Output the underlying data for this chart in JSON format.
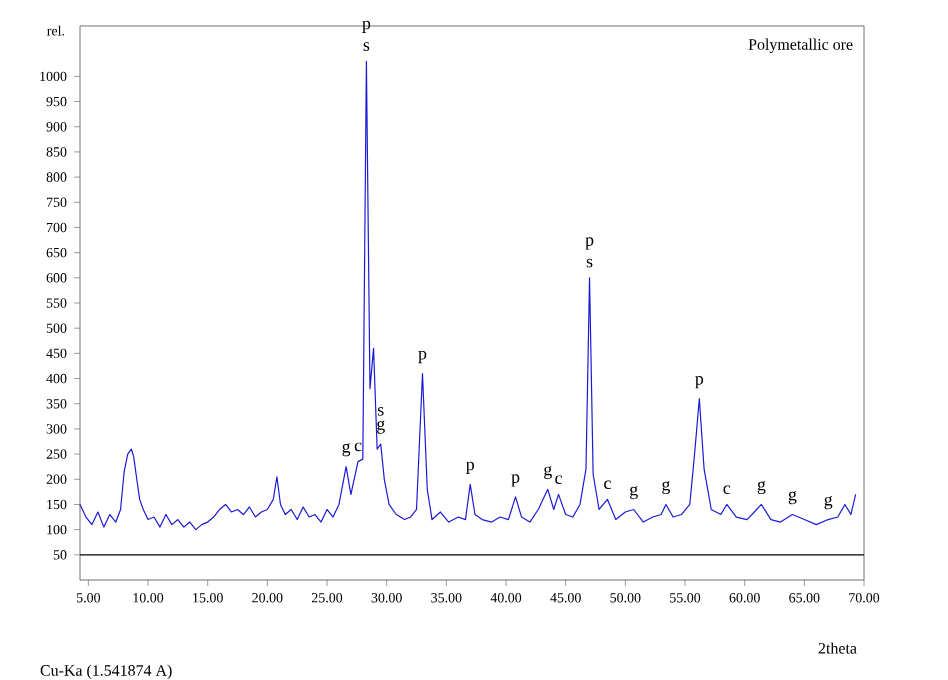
{
  "chart_data": {
    "type": "line",
    "title": "Polymetallic ore",
    "xlabel": "2theta",
    "ylabel": "rel.",
    "annotations": [
      "Cu-Ka (1.541874 A)",
      {
        "text": "p",
        "x": 28.3,
        "y": 1030
      },
      {
        "text": "s",
        "x": 28.3,
        "y": 1030
      },
      {
        "text": "g",
        "x": 26.6,
        "y": 225
      },
      {
        "text": "c",
        "x": 27.6,
        "y": 235
      },
      {
        "text": "s",
        "x": 29.5,
        "y": 270
      },
      {
        "text": "g",
        "x": 29.5,
        "y": 270
      },
      {
        "text": "p",
        "x": 33.0,
        "y": 410
      },
      {
        "text": "p",
        "x": 37.0,
        "y": 190
      },
      {
        "text": "p",
        "x": 40.8,
        "y": 165
      },
      {
        "text": "g",
        "x": 43.5,
        "y": 180
      },
      {
        "text": "c",
        "x": 44.4,
        "y": 170
      },
      {
        "text": "p",
        "x": 47.0,
        "y": 600
      },
      {
        "text": "s",
        "x": 47.0,
        "y": 600
      },
      {
        "text": "c",
        "x": 48.5,
        "y": 160
      },
      {
        "text": "g",
        "x": 50.7,
        "y": 140
      },
      {
        "text": "g",
        "x": 53.4,
        "y": 150
      },
      {
        "text": "p",
        "x": 56.2,
        "y": 360
      },
      {
        "text": "c",
        "x": 58.5,
        "y": 150
      },
      {
        "text": "g",
        "x": 61.4,
        "y": 150
      },
      {
        "text": "g",
        "x": 64.0,
        "y": 130
      },
      {
        "text": "g",
        "x": 67.0,
        "y": 120
      }
    ],
    "x": [
      4.3,
      4.8,
      5.3,
      5.8,
      6.3,
      6.8,
      7.3,
      7.7,
      8.0,
      8.3,
      8.6,
      8.8,
      9.0,
      9.3,
      9.6,
      10.0,
      10.5,
      11.0,
      11.5,
      12.0,
      12.5,
      13.0,
      13.5,
      14.0,
      14.5,
      15.0,
      15.5,
      16.0,
      16.5,
      17.0,
      17.5,
      18.0,
      18.5,
      19.0,
      19.5,
      20.0,
      20.5,
      20.8,
      21.1,
      21.5,
      22.0,
      22.5,
      23.0,
      23.5,
      24.0,
      24.5,
      25.0,
      25.5,
      26.0,
      26.6,
      27.0,
      27.6,
      28.0,
      28.3,
      28.6,
      28.9,
      29.2,
      29.5,
      29.8,
      30.2,
      30.8,
      31.5,
      32.0,
      32.5,
      33.0,
      33.4,
      33.8,
      34.5,
      35.2,
      36.0,
      36.6,
      37.0,
      37.4,
      38.0,
      38.8,
      39.5,
      40.2,
      40.8,
      41.3,
      42.0,
      42.7,
      43.5,
      44.0,
      44.4,
      45.0,
      45.6,
      46.2,
      46.7,
      47.0,
      47.3,
      47.8,
      48.5,
      49.2,
      50.0,
      50.7,
      51.5,
      52.3,
      53.0,
      53.4,
      54.0,
      54.7,
      55.4,
      55.8,
      56.2,
      56.6,
      57.2,
      58.0,
      58.5,
      59.3,
      60.2,
      61.0,
      61.4,
      62.2,
      63.0,
      64.0,
      65.0,
      66.0,
      67.0,
      67.8,
      68.4,
      68.9,
      69.3
    ],
    "series": [
      {
        "color": "#1a1ad6",
        "values": [
          150,
          125,
          110,
          135,
          105,
          130,
          115,
          140,
          215,
          250,
          260,
          245,
          210,
          160,
          140,
          120,
          125,
          105,
          130,
          110,
          120,
          105,
          115,
          100,
          110,
          115,
          125,
          140,
          150,
          135,
          140,
          130,
          145,
          125,
          135,
          140,
          160,
          205,
          150,
          130,
          140,
          120,
          145,
          125,
          130,
          115,
          140,
          125,
          150,
          225,
          170,
          235,
          240,
          1030,
          380,
          460,
          260,
          270,
          200,
          150,
          130,
          120,
          125,
          140,
          410,
          180,
          120,
          135,
          115,
          125,
          120,
          190,
          130,
          120,
          115,
          125,
          120,
          165,
          125,
          115,
          140,
          180,
          140,
          170,
          130,
          125,
          150,
          220,
          600,
          210,
          140,
          160,
          120,
          135,
          140,
          115,
          125,
          130,
          150,
          125,
          130,
          150,
          250,
          360,
          220,
          140,
          130,
          150,
          125,
          120,
          140,
          150,
          120,
          115,
          130,
          120,
          110,
          120,
          125,
          150,
          130,
          170
        ]
      }
    ],
    "xlim": [
      4.3,
      70
    ],
    "ylim": [
      0,
      1100
    ],
    "xticks": [
      {
        "value": 5,
        "label": "5.00"
      },
      {
        "value": 10,
        "label": "10.00"
      },
      {
        "value": 15,
        "label": "15.00"
      },
      {
        "value": 20,
        "label": "20.00"
      },
      {
        "value": 25,
        "label": "25.00"
      },
      {
        "value": 30,
        "label": "30.00"
      },
      {
        "value": 35,
        "label": "35.00"
      },
      {
        "value": 40,
        "label": "40.00"
      },
      {
        "value": 45,
        "label": "45.00"
      },
      {
        "value": 50,
        "label": "50.00"
      },
      {
        "value": 55,
        "label": "55.00"
      },
      {
        "value": 60,
        "label": "60.00"
      },
      {
        "value": 65,
        "label": "65.00"
      },
      {
        "value": 70,
        "label": "70.00"
      }
    ],
    "yticks": [
      50,
      100,
      150,
      200,
      250,
      300,
      350,
      400,
      450,
      500,
      550,
      600,
      650,
      700,
      750,
      800,
      850,
      900,
      950,
      1000
    ],
    "ref_lines": [
      {
        "axis": "y",
        "value": 50,
        "color": "#000000"
      }
    ],
    "grid": false,
    "marker": "none",
    "line_style": "solid"
  }
}
